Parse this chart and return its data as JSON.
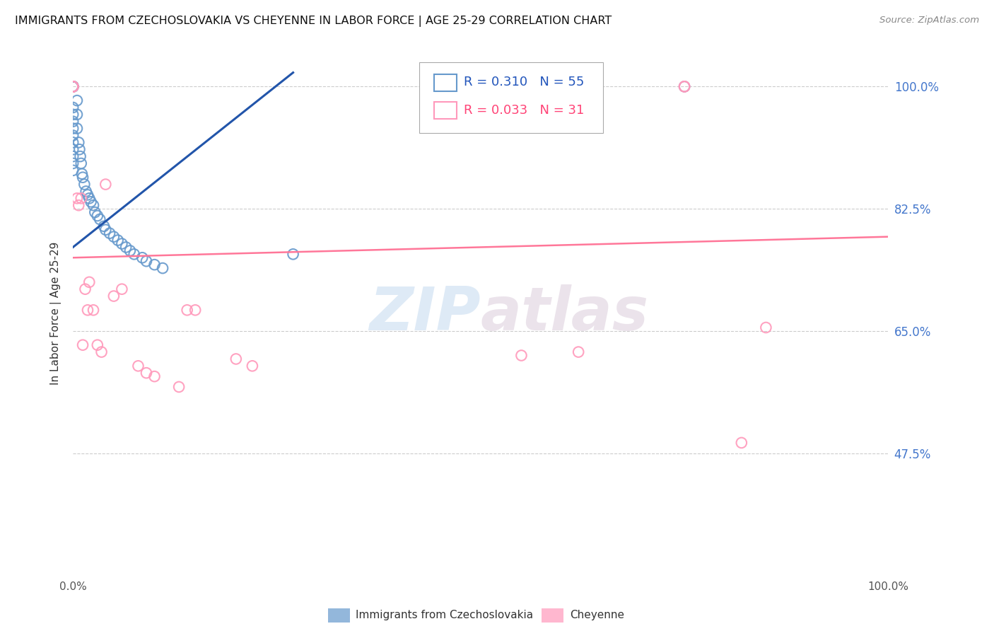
{
  "title": "IMMIGRANTS FROM CZECHOSLOVAKIA VS CHEYENNE IN LABOR FORCE | AGE 25-29 CORRELATION CHART",
  "source": "Source: ZipAtlas.com",
  "ylabel": "In Labor Force | Age 25-29",
  "ytick_labels": [
    "100.0%",
    "82.5%",
    "65.0%",
    "47.5%"
  ],
  "ytick_values": [
    1.0,
    0.825,
    0.65,
    0.475
  ],
  "xlim": [
    0.0,
    1.0
  ],
  "ylim": [
    0.3,
    1.05
  ],
  "legend1_r": "0.310",
  "legend1_n": "55",
  "legend2_r": "0.033",
  "legend2_n": "31",
  "blue_color": "#6699CC",
  "pink_color": "#FF99BB",
  "trendline_blue": "#2255AA",
  "trendline_pink": "#FF7799",
  "watermark_zip": "ZIP",
  "watermark_atlas": "atlas",
  "blue_scatter_x": [
    0.0,
    0.0,
    0.0,
    0.0,
    0.0,
    0.0,
    0.0,
    0.0,
    0.0,
    0.0,
    0.0,
    0.0,
    0.0,
    0.0,
    0.0,
    0.0,
    0.0,
    0.0,
    0.0,
    0.0,
    0.0,
    0.0,
    0.005,
    0.005,
    0.005,
    0.007,
    0.008,
    0.009,
    0.01,
    0.011,
    0.012,
    0.014,
    0.016,
    0.018,
    0.02,
    0.022,
    0.025,
    0.027,
    0.03,
    0.033,
    0.038,
    0.04,
    0.045,
    0.05,
    0.055,
    0.06,
    0.065,
    0.07,
    0.075,
    0.085,
    0.09,
    0.1,
    0.11,
    0.27,
    0.75
  ],
  "blue_scatter_y": [
    1.0,
    1.0,
    1.0,
    1.0,
    1.0,
    1.0,
    1.0,
    1.0,
    1.0,
    1.0,
    1.0,
    1.0,
    0.97,
    0.96,
    0.95,
    0.94,
    0.93,
    0.92,
    0.91,
    0.9,
    0.89,
    0.88,
    0.98,
    0.96,
    0.94,
    0.92,
    0.91,
    0.9,
    0.89,
    0.875,
    0.87,
    0.86,
    0.85,
    0.845,
    0.84,
    0.835,
    0.83,
    0.82,
    0.815,
    0.81,
    0.8,
    0.795,
    0.79,
    0.785,
    0.78,
    0.775,
    0.77,
    0.765,
    0.76,
    0.755,
    0.75,
    0.745,
    0.74,
    0.76,
    1.0
  ],
  "pink_scatter_x": [
    0.0,
    0.0,
    0.0,
    0.0,
    0.005,
    0.007,
    0.01,
    0.012,
    0.015,
    0.018,
    0.02,
    0.025,
    0.03,
    0.035,
    0.04,
    0.05,
    0.06,
    0.08,
    0.09,
    0.1,
    0.13,
    0.14,
    0.2,
    0.22,
    0.55,
    0.62,
    0.75,
    0.75,
    0.82,
    0.85,
    0.15
  ],
  "pink_scatter_y": [
    1.0,
    1.0,
    1.0,
    1.0,
    0.84,
    0.83,
    0.84,
    0.63,
    0.71,
    0.68,
    0.72,
    0.68,
    0.63,
    0.62,
    0.86,
    0.7,
    0.71,
    0.6,
    0.59,
    0.585,
    0.57,
    0.68,
    0.61,
    0.6,
    0.615,
    0.62,
    1.0,
    1.0,
    0.49,
    0.655,
    0.68
  ],
  "blue_trendline_x": [
    0.0,
    0.27
  ],
  "blue_trendline_y": [
    0.77,
    1.02
  ],
  "pink_trendline_x": [
    0.0,
    1.0
  ],
  "pink_trendline_y": [
    0.755,
    0.785
  ]
}
